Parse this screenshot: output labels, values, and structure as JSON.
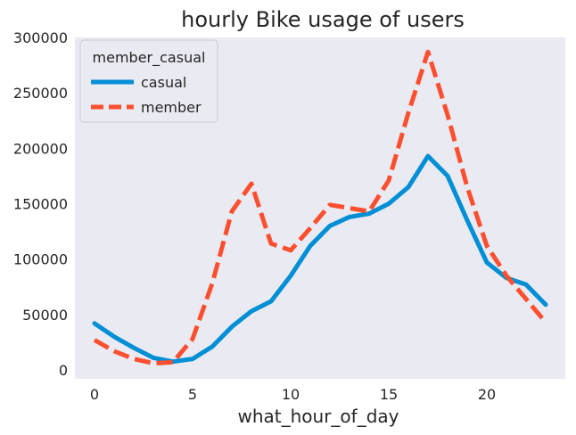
{
  "chart_data": {
    "type": "line",
    "title": "hourly Bike usage of users",
    "xlabel": "what_hour_of_day",
    "ylabel": "",
    "xlim": [
      -1,
      24
    ],
    "ylim": [
      -8000,
      300000
    ],
    "xticks": [
      0,
      5,
      10,
      15,
      20
    ],
    "yticks": [
      0,
      50000,
      100000,
      150000,
      200000,
      250000,
      300000
    ],
    "grid": false,
    "legend": {
      "title": "member_casual",
      "placement": "top-left"
    },
    "x": [
      0,
      1,
      2,
      3,
      4,
      5,
      6,
      7,
      8,
      9,
      10,
      11,
      12,
      13,
      14,
      15,
      16,
      17,
      18,
      19,
      20,
      21,
      22,
      23
    ],
    "series": [
      {
        "name": "casual",
        "color": "#008fd5",
        "dash": "solid",
        "values": [
          42000,
          30000,
          20000,
          11000,
          7500,
          10000,
          21000,
          39000,
          53000,
          62000,
          85000,
          112000,
          130000,
          138000,
          141000,
          150000,
          165000,
          193000,
          175000,
          135000,
          97000,
          83000,
          77000,
          59000
        ]
      },
      {
        "name": "member",
        "color": "#fc4f30",
        "dash": "dashed",
        "values": [
          27000,
          17000,
          10000,
          6000,
          7000,
          28000,
          78000,
          143000,
          168000,
          114000,
          108000,
          128000,
          149000,
          146000,
          143000,
          171000,
          232000,
          287000,
          230000,
          165000,
          112000,
          85000,
          64000,
          43000
        ]
      }
    ]
  }
}
